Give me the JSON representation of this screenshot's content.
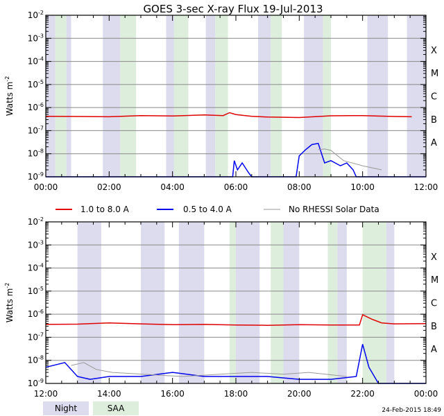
{
  "title": "GOES 3-sec X-ray Flux   19-Jul-2013",
  "timestamp": "24-Feb-2015 18:49",
  "colors": {
    "long": "#e00000",
    "short": "#0000ee",
    "norhessi": "#999999",
    "night": "#dcdcee",
    "saa": "#ddeedd",
    "grid": "#888888"
  },
  "legend": {
    "long": "1.0 to 8.0 A",
    "short": "0.5 to 4.0 A",
    "norhessi": "No RHESSI Solar Data",
    "night": "Night",
    "saa": "SAA"
  },
  "chart_data": [
    {
      "type": "line",
      "panel": "top",
      "title": "GOES 3-sec X-ray Flux   19-Jul-2013",
      "ylabel": "Watts m^-2",
      "yscale": "log",
      "ylim": [
        1e-09,
        0.01
      ],
      "ytick_labels": [
        "10-9",
        "10-8",
        "10-7",
        "10-6",
        "10-5",
        "10-4",
        "10-3",
        "10-2"
      ],
      "xlim": [
        0,
        12
      ],
      "xtick_labels": [
        "00:00",
        "02:00",
        "04:00",
        "06:00",
        "08:00",
        "10:00",
        "12:00"
      ],
      "flare_classes": [
        "A",
        "B",
        "C",
        "M",
        "X"
      ],
      "night_intervals": [
        [
          0.0,
          0.3
        ],
        [
          0.65,
          0.8
        ],
        [
          1.8,
          2.35
        ],
        [
          3.8,
          4.05
        ],
        [
          5.05,
          5.35
        ],
        [
          6.7,
          7.1
        ],
        [
          8.15,
          8.75
        ],
        [
          10.15,
          10.8
        ],
        [
          11.4,
          12.0
        ]
      ],
      "saa_intervals": [
        [
          0.3,
          0.65
        ],
        [
          2.35,
          2.85
        ],
        [
          4.05,
          4.5
        ],
        [
          5.35,
          5.75
        ],
        [
          7.1,
          7.45
        ],
        [
          8.75,
          9.0
        ]
      ],
      "series": [
        {
          "name": "1.0 to 8.0 A",
          "points": [
            [
              0,
              4.2e-07
            ],
            [
              1,
              4.1e-07
            ],
            [
              2,
              4e-07
            ],
            [
              3,
              4.5e-07
            ],
            [
              4,
              4.3e-07
            ],
            [
              5,
              4.8e-07
            ],
            [
              5.6,
              4.5e-07
            ],
            [
              5.8,
              6e-07
            ],
            [
              6.0,
              5e-07
            ],
            [
              6.5,
              4.2e-07
            ],
            [
              7.0,
              3.9e-07
            ],
            [
              8,
              3.7e-07
            ],
            [
              9,
              4.4e-07
            ],
            [
              10,
              4.5e-07
            ],
            [
              11,
              4.1e-07
            ],
            [
              11.55,
              4e-07
            ]
          ]
        },
        {
          "name": "0.5 to 4.0 A",
          "points": [
            [
              0,
              1e-09
            ],
            [
              5.9,
              1e-09
            ],
            [
              5.95,
              5e-09
            ],
            [
              6.05,
              2e-09
            ],
            [
              6.2,
              4e-09
            ],
            [
              6.4,
              1.5e-09
            ],
            [
              6.5,
              1e-09
            ],
            [
              7.9,
              1e-09
            ],
            [
              8.0,
              8e-09
            ],
            [
              8.2,
              1.5e-08
            ],
            [
              8.4,
              2.5e-08
            ],
            [
              8.6,
              2.8e-08
            ],
            [
              8.8,
              4e-09
            ],
            [
              9.0,
              5e-09
            ],
            [
              9.3,
              3e-09
            ],
            [
              9.5,
              4e-09
            ],
            [
              9.7,
              2e-09
            ],
            [
              9.8,
              1e-09
            ],
            [
              12,
              1e-09
            ]
          ]
        },
        {
          "name": "No RHESSI Solar Data",
          "points": [
            [
              8.6,
              1.5e-08
            ],
            [
              8.8,
              1.6e-08
            ],
            [
              9.0,
              1.4e-08
            ],
            [
              9.4,
              5e-09
            ],
            [
              10.0,
              3e-09
            ],
            [
              10.6,
              2e-09
            ]
          ]
        }
      ]
    },
    {
      "type": "line",
      "panel": "bottom",
      "ylabel": "Watts m^-2",
      "yscale": "log",
      "ylim": [
        1e-09,
        0.01
      ],
      "ytick_labels": [
        "10-9",
        "10-8",
        "10-7",
        "10-6",
        "10-5",
        "10-4",
        "10-3",
        "10-2"
      ],
      "xlim": [
        12,
        24
      ],
      "xtick_labels": [
        "12:00",
        "14:00",
        "16:00",
        "18:00",
        "20:00",
        "22:00",
        "00:00"
      ],
      "flare_classes": [
        "A",
        "B",
        "C",
        "M",
        "X"
      ],
      "night_intervals": [
        [
          13.0,
          13.75
        ],
        [
          15.0,
          15.75
        ],
        [
          16.2,
          17.0
        ],
        [
          18.0,
          18.75
        ],
        [
          19.5,
          20.0
        ],
        [
          21.2,
          21.5
        ],
        [
          22.75,
          23.0
        ]
      ],
      "saa_intervals": [
        [
          17.8,
          18.0
        ],
        [
          19.1,
          19.5
        ],
        [
          20.9,
          21.2
        ],
        [
          22.0,
          22.75
        ]
      ],
      "series": [
        {
          "name": "1.0 to 8.0 A",
          "points": [
            [
              12,
              3.6e-07
            ],
            [
              13,
              3.7e-07
            ],
            [
              14,
              4.2e-07
            ],
            [
              15,
              3.8e-07
            ],
            [
              16,
              3.5e-07
            ],
            [
              17,
              3.6e-07
            ],
            [
              18,
              3.4e-07
            ],
            [
              19,
              3.3e-07
            ],
            [
              20,
              3.5e-07
            ],
            [
              21,
              3.4e-07
            ],
            [
              21.9,
              3.4e-07
            ],
            [
              22.0,
              9.5e-07
            ],
            [
              22.3,
              6e-07
            ],
            [
              22.6,
              4.2e-07
            ],
            [
              23,
              3.8e-07
            ],
            [
              24,
              3.9e-07
            ]
          ]
        },
        {
          "name": "0.5 to 4.0 A",
          "points": [
            [
              12,
              5e-09
            ],
            [
              12.6,
              8e-09
            ],
            [
              13.0,
              2e-09
            ],
            [
              13.4,
              1.5e-09
            ],
            [
              14,
              2e-09
            ],
            [
              15,
              2e-09
            ],
            [
              16,
              3e-09
            ],
            [
              17,
              2e-09
            ],
            [
              18,
              2e-09
            ],
            [
              19,
              2e-09
            ],
            [
              20,
              1.5e-09
            ],
            [
              21,
              1.5e-09
            ],
            [
              21.8,
              2e-09
            ],
            [
              22.0,
              5e-08
            ],
            [
              22.2,
              5e-09
            ],
            [
              22.5,
              1e-09
            ],
            [
              24,
              1e-09
            ]
          ]
        },
        {
          "name": "No RHESSI Solar Data",
          "points": [
            [
              12.8,
              6e-09
            ],
            [
              13.2,
              8e-09
            ],
            [
              13.6,
              4e-09
            ],
            [
              14.1,
              3e-09
            ],
            [
              16.3,
              2e-09
            ],
            [
              17.5,
              2.5e-09
            ],
            [
              18.5,
              3e-09
            ],
            [
              19.5,
              2.5e-09
            ],
            [
              20.3,
              3e-09
            ],
            [
              21.5,
              2e-09
            ]
          ]
        }
      ]
    }
  ]
}
